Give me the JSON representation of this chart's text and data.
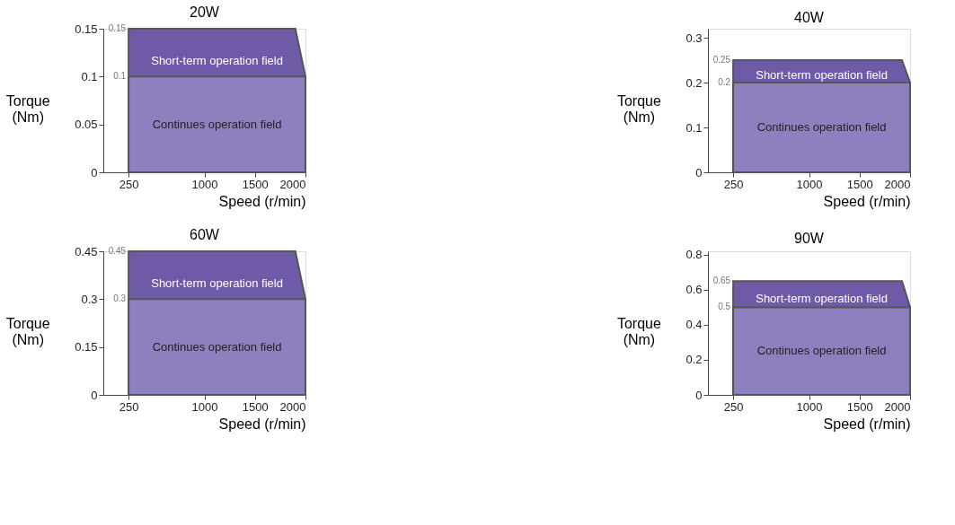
{
  "chart_data": [
    {
      "type": "area",
      "title": "20W",
      "xlabel": "Speed (r/min)",
      "ylabel": "Torque\n(Nm)",
      "xlim": [
        0,
        2000
      ],
      "xticks": [
        250,
        1000,
        1500,
        2000
      ],
      "ylim": [
        0,
        0.15
      ],
      "yticks": [
        0,
        0.05,
        0.1,
        0.15
      ],
      "grid": false,
      "series": [
        {
          "name": "Short-term operation field",
          "color": "#6f5aa8",
          "x": [
            250,
            1900,
            2000
          ],
          "values": [
            0.15,
            0.15,
            0.1
          ]
        },
        {
          "name": "Continues operation field",
          "color": "#8e80bf",
          "x": [
            250,
            2000
          ],
          "values": [
            0.1,
            0.1
          ]
        }
      ],
      "annotations": [
        "0.15",
        "0.1"
      ]
    },
    {
      "type": "area",
      "title": "40W",
      "xlabel": "Speed (r/min)",
      "ylabel": "Torque\n(Nm)",
      "xlim": [
        0,
        2000
      ],
      "xticks": [
        250,
        1000,
        1500,
        2000
      ],
      "ylim": [
        0,
        0.32
      ],
      "yticks": [
        0,
        0.1,
        0.2,
        0.3
      ],
      "grid": false,
      "series": [
        {
          "name": "Short-term operation field",
          "color": "#6f5aa8",
          "x": [
            250,
            1920,
            2000
          ],
          "values": [
            0.25,
            0.25,
            0.2
          ]
        },
        {
          "name": "Continues operation field",
          "color": "#8e80bf",
          "x": [
            250,
            2000
          ],
          "values": [
            0.2,
            0.2
          ]
        }
      ],
      "annotations": [
        "0.25",
        "0.2"
      ]
    },
    {
      "type": "area",
      "title": "60W",
      "xlabel": "Speed (r/min)",
      "ylabel": "Torque\n(Nm)",
      "xlim": [
        0,
        2000
      ],
      "xticks": [
        250,
        1000,
        1500,
        2000
      ],
      "ylim": [
        0,
        0.45
      ],
      "yticks": [
        0,
        0.15,
        0.3,
        0.45
      ],
      "grid": false,
      "series": [
        {
          "name": "Short-term operation field",
          "color": "#6f5aa8",
          "x": [
            250,
            1900,
            2000
          ],
          "values": [
            0.45,
            0.45,
            0.3
          ]
        },
        {
          "name": "Continues operation field",
          "color": "#8e80bf",
          "x": [
            250,
            2000
          ],
          "values": [
            0.3,
            0.3
          ]
        }
      ],
      "annotations": [
        "0.45",
        "0.3"
      ]
    },
    {
      "type": "area",
      "title": "90W",
      "xlabel": "Speed (r/min)",
      "ylabel": "Torque\n(Nm)",
      "xlim": [
        0,
        2000
      ],
      "xticks": [
        250,
        1000,
        1500,
        2000
      ],
      "ylim": [
        0,
        0.82
      ],
      "yticks": [
        0,
        0.2,
        0.4,
        0.6,
        0.8
      ],
      "grid": false,
      "series": [
        {
          "name": "Short-term operation field",
          "color": "#6f5aa8",
          "x": [
            250,
            1920,
            2000
          ],
          "values": [
            0.65,
            0.65,
            0.5
          ]
        },
        {
          "name": "Continues operation field",
          "color": "#8e80bf",
          "x": [
            250,
            2000
          ],
          "values": [
            0.5,
            0.5
          ]
        }
      ],
      "annotations": [
        "0.65",
        "0.5"
      ]
    }
  ]
}
